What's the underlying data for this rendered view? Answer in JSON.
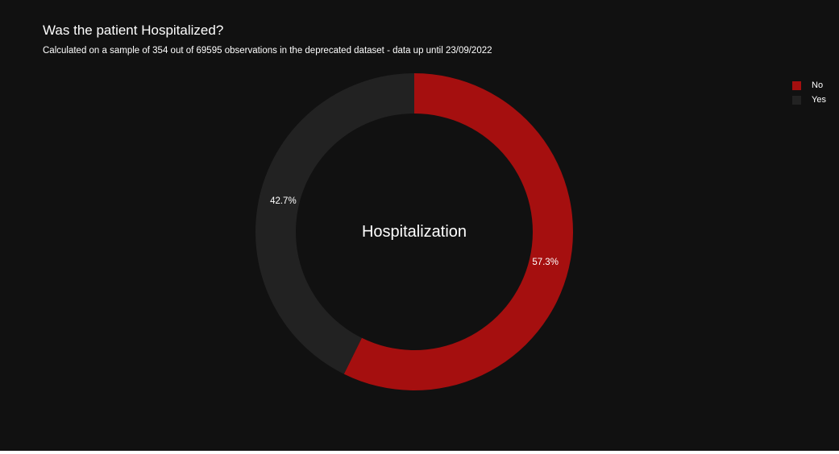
{
  "chart_data": {
    "type": "pie",
    "hole": true,
    "title": "Was the patient Hospitalized?",
    "subtitle": "Calculated on a sample of 354 out of 69595 observations in the deprecated dataset - data up until 23/09/2022",
    "center_label": "Hospitalization",
    "slices": [
      {
        "label": "No",
        "value": 57.3,
        "text": "57.3%",
        "color": "#a50f0f"
      },
      {
        "label": "Yes",
        "value": 42.7,
        "text": "42.7%",
        "color": "#222222"
      }
    ],
    "legend": {
      "position": "top-right",
      "entries": [
        "No",
        "Yes"
      ]
    },
    "background": "#111111"
  }
}
